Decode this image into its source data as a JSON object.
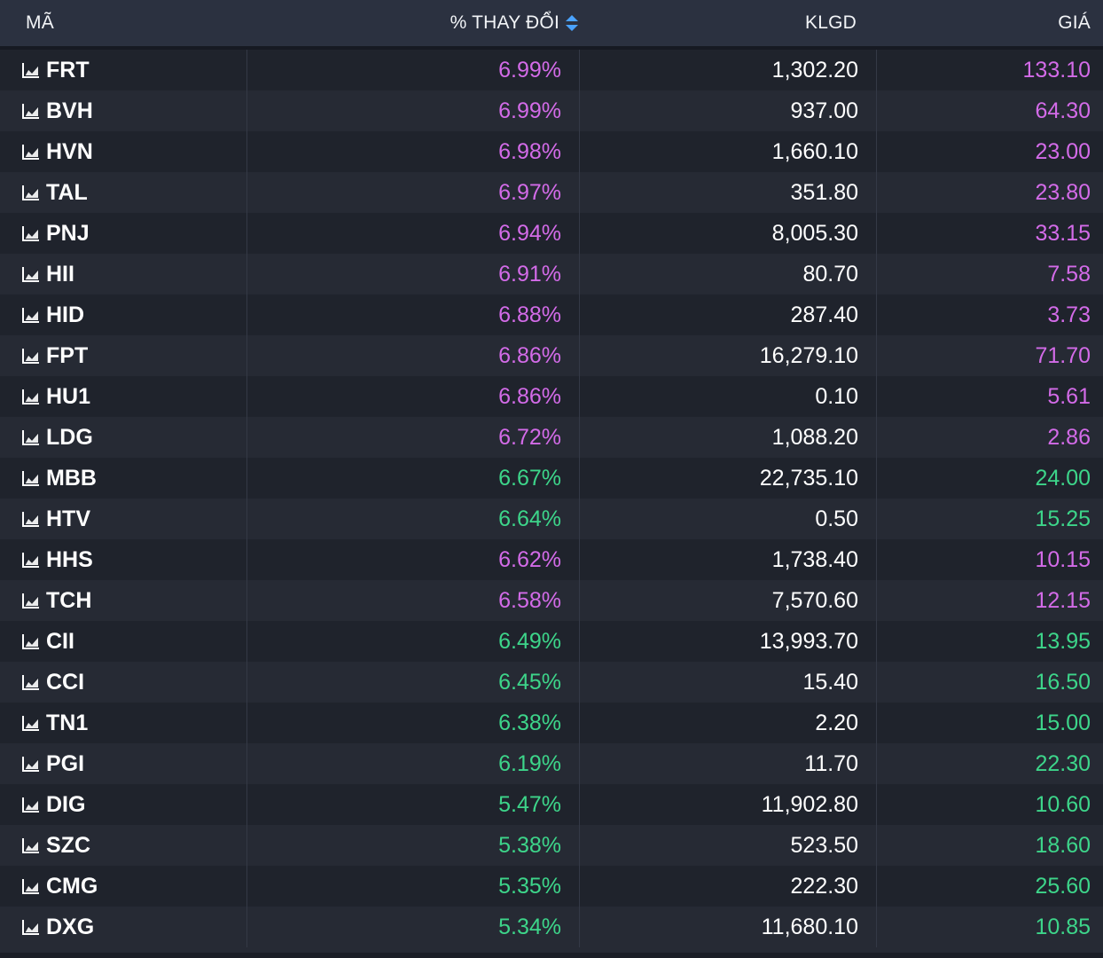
{
  "header": {
    "code_label": "MÃ",
    "pct_label": "% THAY ĐỔI",
    "vol_label": "KLGD",
    "price_label": "GIÁ"
  },
  "colors": {
    "up_ceiling": "#d36be8",
    "up": "#3dd58a",
    "header_bg": "#2b3140",
    "sort_icon": "#4aa3ff"
  },
  "rows": [
    {
      "code": "FRT",
      "pct": "6.99%",
      "vol": "1,302.20",
      "price": "133.10",
      "pct_color": "purple",
      "price_color": "purple"
    },
    {
      "code": "BVH",
      "pct": "6.99%",
      "vol": "937.00",
      "price": "64.30",
      "pct_color": "purple",
      "price_color": "purple"
    },
    {
      "code": "HVN",
      "pct": "6.98%",
      "vol": "1,660.10",
      "price": "23.00",
      "pct_color": "purple",
      "price_color": "purple"
    },
    {
      "code": "TAL",
      "pct": "6.97%",
      "vol": "351.80",
      "price": "23.80",
      "pct_color": "purple",
      "price_color": "purple"
    },
    {
      "code": "PNJ",
      "pct": "6.94%",
      "vol": "8,005.30",
      "price": "33.15",
      "pct_color": "purple",
      "price_color": "purple"
    },
    {
      "code": "HII",
      "pct": "6.91%",
      "vol": "80.70",
      "price": "7.58",
      "pct_color": "purple",
      "price_color": "purple"
    },
    {
      "code": "HID",
      "pct": "6.88%",
      "vol": "287.40",
      "price": "3.73",
      "pct_color": "purple",
      "price_color": "purple"
    },
    {
      "code": "FPT",
      "pct": "6.86%",
      "vol": "16,279.10",
      "price": "71.70",
      "pct_color": "purple",
      "price_color": "purple"
    },
    {
      "code": "HU1",
      "pct": "6.86%",
      "vol": "0.10",
      "price": "5.61",
      "pct_color": "purple",
      "price_color": "purple"
    },
    {
      "code": "LDG",
      "pct": "6.72%",
      "vol": "1,088.20",
      "price": "2.86",
      "pct_color": "purple",
      "price_color": "purple"
    },
    {
      "code": "MBB",
      "pct": "6.67%",
      "vol": "22,735.10",
      "price": "24.00",
      "pct_color": "green",
      "price_color": "green"
    },
    {
      "code": "HTV",
      "pct": "6.64%",
      "vol": "0.50",
      "price": "15.25",
      "pct_color": "green",
      "price_color": "green"
    },
    {
      "code": "HHS",
      "pct": "6.62%",
      "vol": "1,738.40",
      "price": "10.15",
      "pct_color": "purple",
      "price_color": "purple"
    },
    {
      "code": "TCH",
      "pct": "6.58%",
      "vol": "7,570.60",
      "price": "12.15",
      "pct_color": "purple",
      "price_color": "purple"
    },
    {
      "code": "CII",
      "pct": "6.49%",
      "vol": "13,993.70",
      "price": "13.95",
      "pct_color": "green",
      "price_color": "green"
    },
    {
      "code": "CCI",
      "pct": "6.45%",
      "vol": "15.40",
      "price": "16.50",
      "pct_color": "green",
      "price_color": "green"
    },
    {
      "code": "TN1",
      "pct": "6.38%",
      "vol": "2.20",
      "price": "15.00",
      "pct_color": "green",
      "price_color": "green"
    },
    {
      "code": "PGI",
      "pct": "6.19%",
      "vol": "11.70",
      "price": "22.30",
      "pct_color": "green",
      "price_color": "green"
    },
    {
      "code": "DIG",
      "pct": "5.47%",
      "vol": "11,902.80",
      "price": "10.60",
      "pct_color": "green",
      "price_color": "green"
    },
    {
      "code": "SZC",
      "pct": "5.38%",
      "vol": "523.50",
      "price": "18.60",
      "pct_color": "green",
      "price_color": "green"
    },
    {
      "code": "CMG",
      "pct": "5.35%",
      "vol": "222.30",
      "price": "25.60",
      "pct_color": "green",
      "price_color": "green"
    },
    {
      "code": "DXG",
      "pct": "5.34%",
      "vol": "11,680.10",
      "price": "10.85",
      "pct_color": "green",
      "price_color": "green"
    }
  ]
}
